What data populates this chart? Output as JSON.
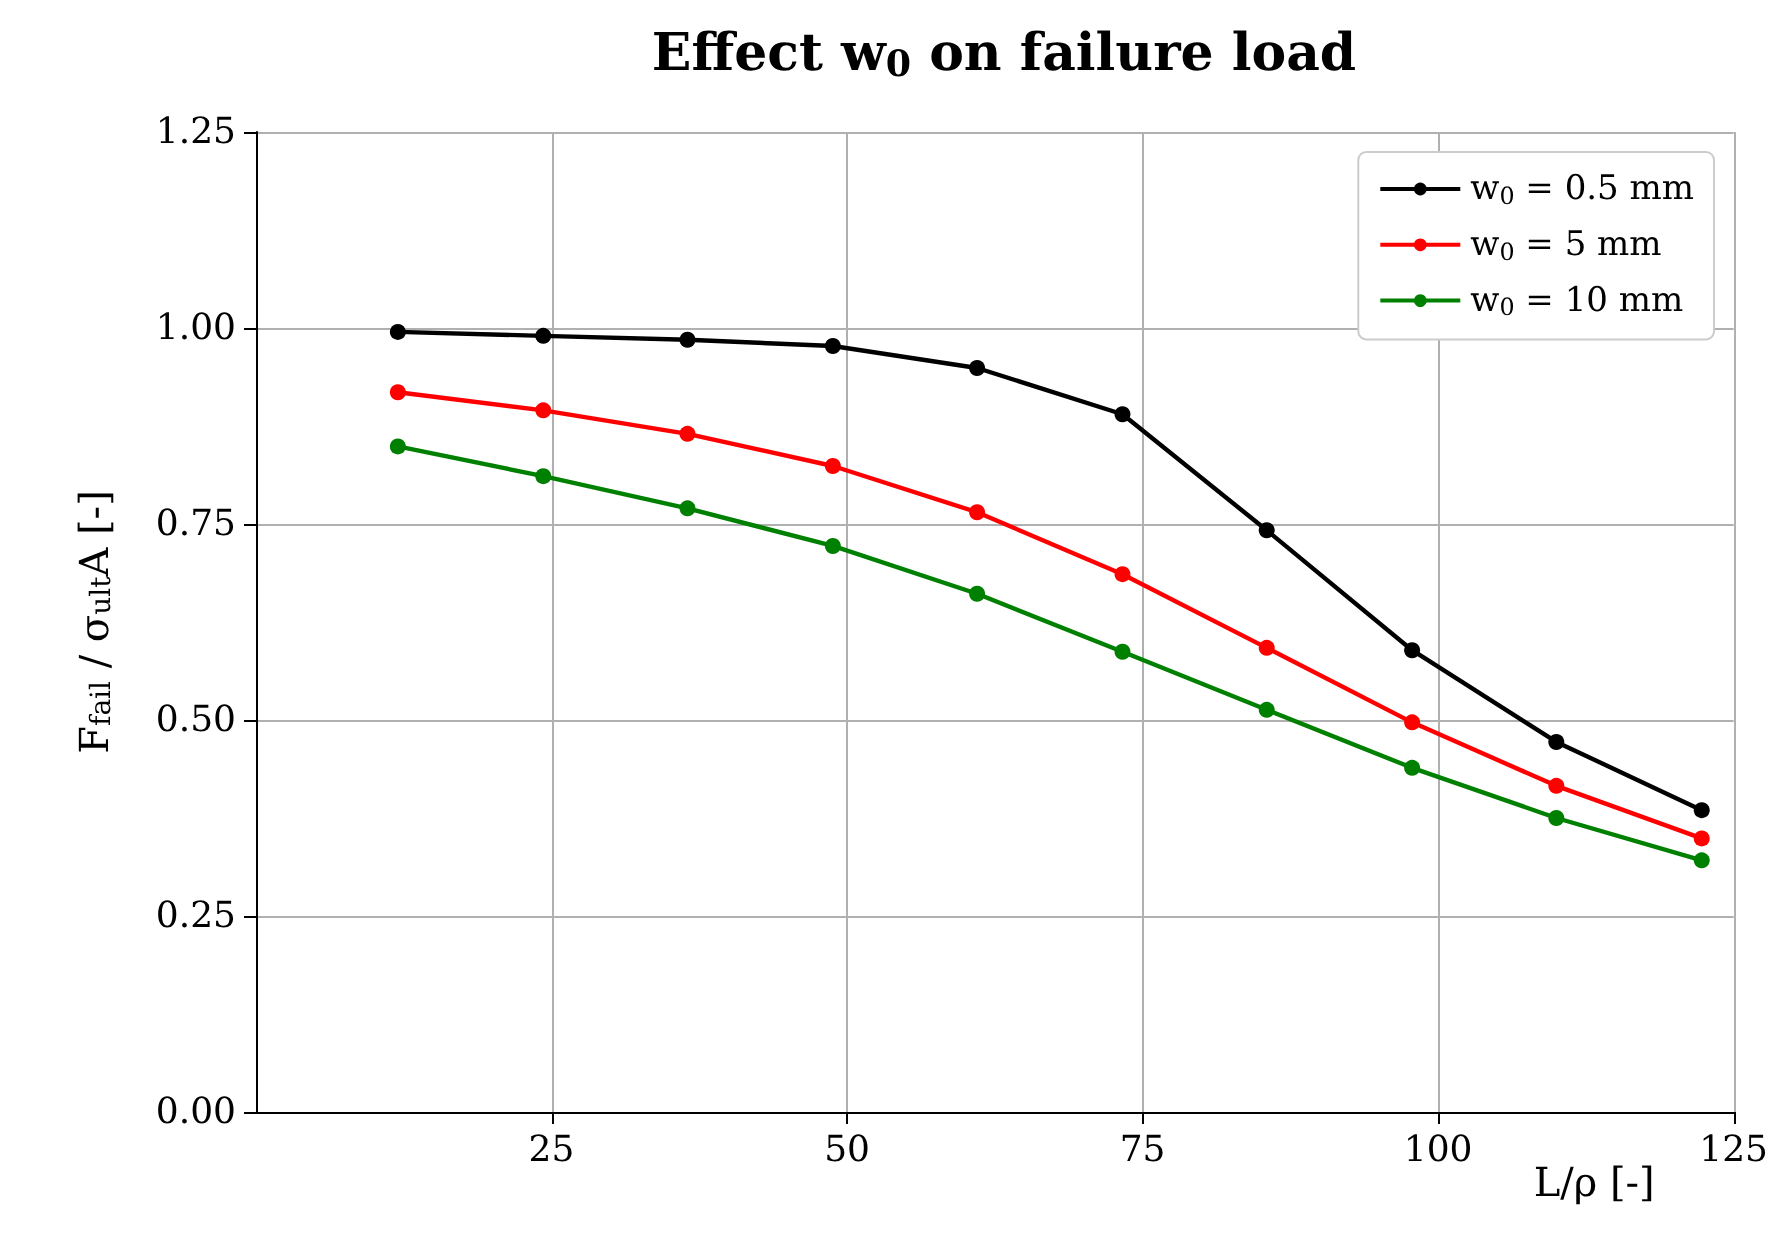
{
  "chart_data": {
    "type": "line",
    "title": "Effect w$_{0}$ on failure load",
    "xlabel": "L/ρ [-]",
    "ylabel": "F$_{fail}$ / σ$_{ult}$A [-]",
    "x": [
      12.0,
      24.3,
      36.5,
      48.8,
      61.0,
      73.3,
      85.5,
      97.8,
      110.0,
      122.3
    ],
    "series": [
      {
        "name": "w$_{0}$ = 0.5 mm",
        "color": "#000000",
        "values": [
          0.995,
          0.99,
          0.985,
          0.977,
          0.949,
          0.89,
          0.742,
          0.589,
          0.472,
          0.385
        ]
      },
      {
        "name": "w$_{0}$ = 5 mm",
        "color": "#ff0000",
        "values": [
          0.918,
          0.895,
          0.865,
          0.824,
          0.765,
          0.686,
          0.592,
          0.497,
          0.416,
          0.349
        ]
      },
      {
        "name": "w$_{0}$ = 10 mm",
        "color": "#008000",
        "values": [
          0.849,
          0.811,
          0.77,
          0.722,
          0.661,
          0.587,
          0.513,
          0.439,
          0.375,
          0.321
        ]
      }
    ],
    "xlim": [
      0,
      125
    ],
    "xticks": [
      25,
      50,
      75,
      100,
      125
    ],
    "ylim": [
      0,
      1.25
    ],
    "yticks": [
      {
        "value": 0,
        "label": "0.00"
      },
      {
        "value": 0.25,
        "label": "0.25"
      },
      {
        "value": 0.5,
        "label": "0.50"
      },
      {
        "value": 0.75,
        "label": "0.75"
      },
      {
        "value": 1,
        "label": "1.00"
      },
      {
        "value": 1.25,
        "label": "1.25"
      }
    ],
    "grid": true,
    "legend": "top right",
    "marker": "circle",
    "line_style": "solid"
  }
}
